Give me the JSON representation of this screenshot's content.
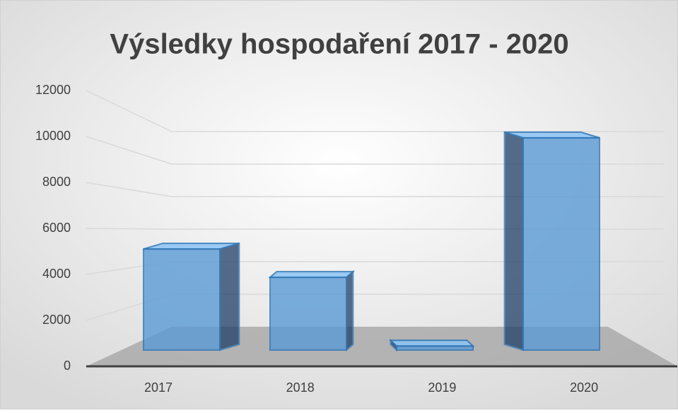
{
  "chart_data": {
    "type": "bar3d",
    "title": "Výsledky hospodaření 2017 - 2020",
    "categories": [
      "2017",
      "2018",
      "2019",
      "2020"
    ],
    "values": [
      5000,
      3600,
      200,
      10500
    ],
    "color": "#5b9bd5",
    "ylim": [
      0,
      12000
    ],
    "yticks": [
      0,
      2000,
      4000,
      6000,
      8000,
      10000,
      12000
    ],
    "grid": true
  }
}
